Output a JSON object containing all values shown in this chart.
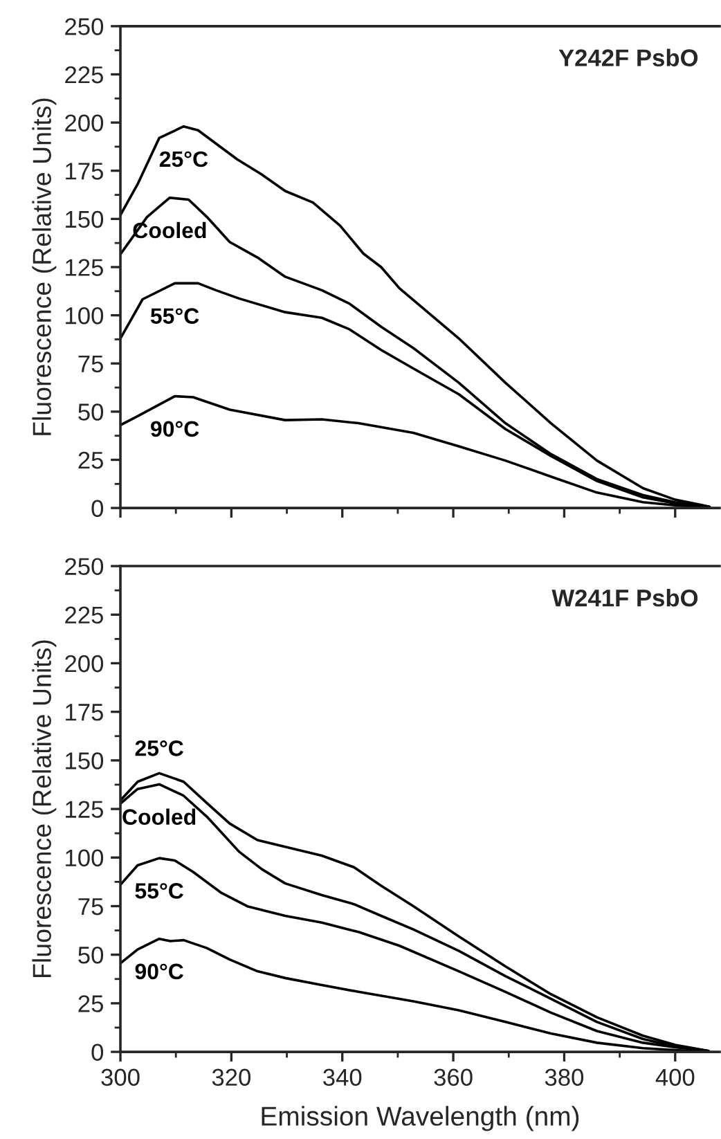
{
  "chart_data": [
    {
      "type": "line",
      "title": "Y242F PsbO",
      "ylabel": "Fluorescence (Relative Units)",
      "xlim": [
        300,
        408
      ],
      "ylim": [
        0,
        250
      ],
      "xticks": [
        300,
        {
          "value": 310,
          "label": null
        },
        320,
        {
          "value": 330,
          "label": null
        },
        340,
        {
          "value": 350,
          "label": null
        },
        360,
        {
          "value": 370,
          "label": null
        },
        380,
        {
          "value": 390,
          "label": null
        },
        400
      ],
      "yticks": [
        0,
        {
          "value": 12.5,
          "label": null
        },
        25,
        {
          "value": 37.5,
          "label": null
        },
        50,
        {
          "value": 62.5,
          "label": null
        },
        75,
        {
          "value": 87.5,
          "label": null
        },
        100,
        {
          "value": 112.5,
          "label": null
        },
        125,
        {
          "value": 137.5,
          "label": null
        },
        150,
        {
          "value": 162.5,
          "label": null
        },
        175,
        {
          "value": 187.5,
          "label": null
        },
        200,
        {
          "value": 212.5,
          "label": null
        },
        225,
        {
          "value": 237.5,
          "label": null
        },
        250
      ],
      "tick_labels": "y",
      "grid": false,
      "legend": false,
      "marker": "none",
      "line_style": "solid",
      "series": [
        {
          "name": "25°C",
          "color": "#000000",
          "x": [
            300,
            303.1,
            307,
            311.4,
            314,
            321,
            325.5,
            329.7,
            334.7,
            339.6,
            343.8,
            347,
            350.3,
            361,
            369.4,
            377.6,
            385.9,
            394.2,
            400,
            406.2
          ],
          "values": [
            152,
            168,
            192,
            198,
            196,
            181,
            173,
            164.5,
            158.5,
            146.5,
            132,
            125,
            114,
            88,
            65,
            44,
            24.6,
            10.3,
            4.3,
            0.7
          ]
        },
        {
          "name": "Cooled",
          "color": "#000000",
          "x": [
            300,
            304.8,
            308.9,
            312.3,
            315.6,
            319.7,
            324.7,
            329.7,
            336.3,
            341.3,
            347,
            352.8,
            361,
            369.4,
            377.6,
            385.9,
            394.2,
            400,
            406
          ],
          "values": [
            131.7,
            151,
            161,
            160,
            151,
            138,
            130,
            120,
            113,
            106,
            94,
            83,
            65,
            44,
            28,
            15,
            6.7,
            3,
            0.7
          ]
        },
        {
          "name": "55°C",
          "color": "#000000",
          "x": [
            300,
            304,
            309.8,
            314,
            317.2,
            321.4,
            329.7,
            336.3,
            341.3,
            347,
            352.8,
            361,
            369.4,
            377.6,
            385.9,
            394.2,
            400,
            406
          ],
          "values": [
            88,
            108.3,
            116.6,
            116.6,
            113,
            108.7,
            101.6,
            98.7,
            92.7,
            82,
            72.4,
            59,
            41,
            27,
            14,
            5.5,
            2.4,
            0.7
          ]
        },
        {
          "name": "90°C",
          "color": "#000000",
          "x": [
            300,
            303,
            309.8,
            313.1,
            319.7,
            329.7,
            336.3,
            342.9,
            352.8,
            361,
            369.4,
            377.6,
            385.9,
            394.2,
            400,
            406
          ],
          "values": [
            43,
            47.5,
            58,
            57.5,
            51,
            45.6,
            46,
            44,
            39,
            32,
            24.6,
            16.3,
            8,
            3,
            1.4,
            0.2
          ]
        }
      ]
    },
    {
      "type": "line",
      "title": "W241F PsbO",
      "xlabel": "Emission Wavelength (nm)",
      "ylabel": "Fluorescence (Relative Units)",
      "xlim": [
        300,
        408
      ],
      "ylim": [
        0,
        250
      ],
      "xticks": [
        300,
        {
          "value": 310,
          "label": null
        },
        320,
        {
          "value": 330,
          "label": null
        },
        340,
        {
          "value": 350,
          "label": null
        },
        360,
        {
          "value": 370,
          "label": null
        },
        380,
        {
          "value": 390,
          "label": null
        },
        400
      ],
      "yticks": [
        0,
        {
          "value": 12.5,
          "label": null
        },
        25,
        {
          "value": 37.5,
          "label": null
        },
        50,
        {
          "value": 62.5,
          "label": null
        },
        75,
        {
          "value": 87.5,
          "label": null
        },
        100,
        {
          "value": 112.5,
          "label": null
        },
        125,
        {
          "value": 137.5,
          "label": null
        },
        150,
        {
          "value": 162.5,
          "label": null
        },
        175,
        {
          "value": 187.5,
          "label": null
        },
        200,
        {
          "value": 212.5,
          "label": null
        },
        225,
        {
          "value": 237.5,
          "label": null
        },
        250
      ],
      "grid": false,
      "legend": false,
      "marker": "none",
      "line_style": "solid",
      "series": [
        {
          "name": "25°C",
          "color": "#000000",
          "x": [
            300,
            303.1,
            307,
            311.4,
            315.6,
            319.7,
            324.7,
            329.7,
            336.3,
            342.1,
            347,
            352.8,
            361,
            369.4,
            377.6,
            385.9,
            394.2,
            400,
            406
          ],
          "values": [
            129.4,
            139,
            143.4,
            139,
            128,
            117.5,
            109,
            105.5,
            101,
            95,
            85.5,
            75,
            59.4,
            44,
            29.7,
            17.8,
            8.3,
            3.6,
            0.5
          ]
        },
        {
          "name": "Cooled",
          "color": "#000000",
          "x": [
            300,
            303.1,
            307,
            311.4,
            315.6,
            321.4,
            325.5,
            329.7,
            336.3,
            342.1,
            347,
            352.8,
            361,
            369.4,
            377.6,
            385.9,
            394.2,
            400,
            406
          ],
          "values": [
            127.7,
            135.3,
            137.7,
            131.8,
            121,
            103,
            94,
            86.7,
            80.7,
            76,
            70,
            63,
            52,
            39,
            27.3,
            15.4,
            6.6,
            2.8,
            0.5
          ]
        },
        {
          "name": "55°C",
          "color": "#000000",
          "x": [
            300,
            303.1,
            307,
            309.8,
            313.1,
            318.1,
            323,
            329.7,
            336.3,
            342.9,
            350.3,
            361,
            369.4,
            377.6,
            385.9,
            394.2,
            400,
            406
          ],
          "values": [
            86,
            96,
            99.7,
            98.5,
            92.6,
            82,
            74.8,
            70,
            66.5,
            61.7,
            54.6,
            41.5,
            30.9,
            20.2,
            10.7,
            4.7,
            2.4,
            0.5
          ]
        },
        {
          "name": "90°C",
          "color": "#000000",
          "x": [
            300,
            303.1,
            307,
            309,
            311.4,
            315.6,
            319.7,
            324.7,
            329.7,
            336.3,
            342.9,
            352.8,
            361,
            369.4,
            377.6,
            385.9,
            394.2,
            400,
            406
          ],
          "values": [
            45.6,
            52.7,
            58.2,
            57,
            57.5,
            53.4,
            47.5,
            41.5,
            38,
            34.4,
            30.9,
            26,
            21.4,
            15.4,
            9.5,
            4.7,
            1.9,
            0.9,
            0
          ]
        }
      ]
    }
  ]
}
